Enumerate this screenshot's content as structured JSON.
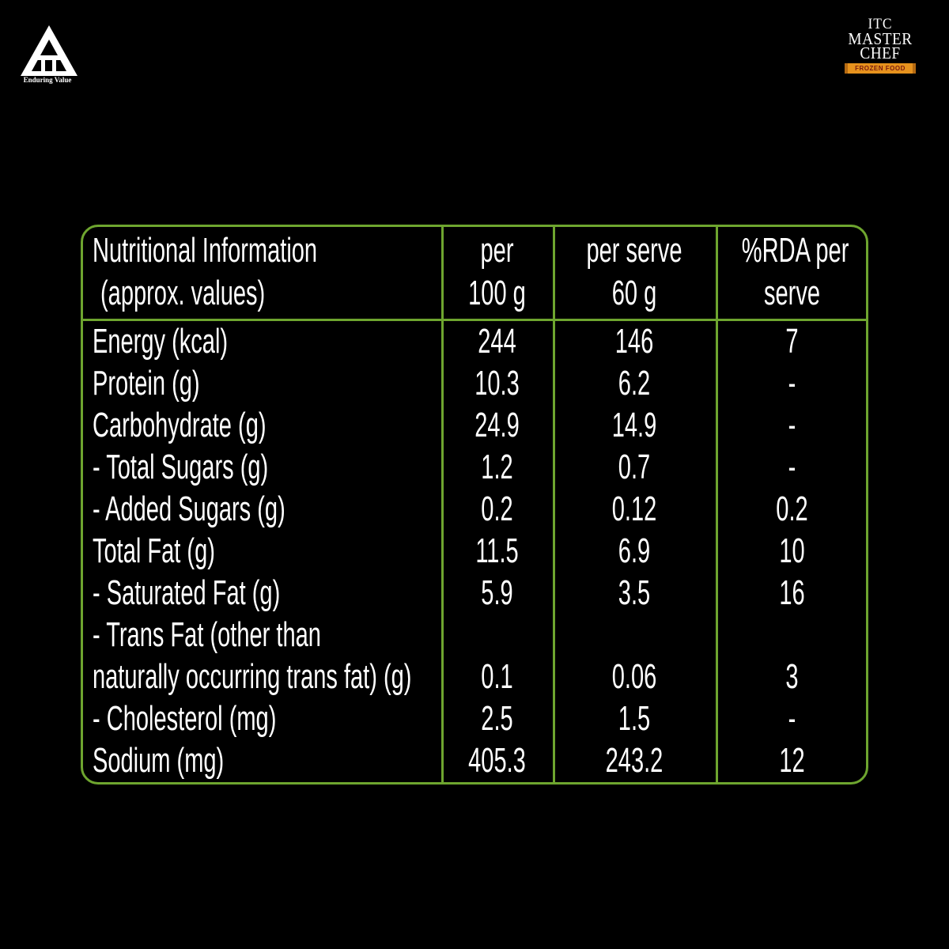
{
  "brand": {
    "itc_logo_text": "ITC",
    "itc_tagline": "Enduring Value",
    "mc_itc": "ITC",
    "mc_master": "MASTER",
    "mc_chef": "CHEF",
    "mc_ribbon": "FROZEN FOOD"
  },
  "table": {
    "headers": {
      "nutrient_line1": "Nutritional Information",
      "nutrient_line2": "(approx. values)",
      "per100_line1": "per",
      "per100_line2": "100 g",
      "perserve_line1": "per serve",
      "perserve_line2": "60 g",
      "rda_line1": "%RDA per",
      "rda_line2": "serve"
    },
    "rows": [
      {
        "label": "Energy (kcal)",
        "per100": "244",
        "serve": "146",
        "rda": "7"
      },
      {
        "label": "Protein (g)",
        "per100": "10.3",
        "serve": "6.2",
        "rda": "-"
      },
      {
        "label": "Carbohydrate (g)",
        "per100": "24.9",
        "serve": "14.9",
        "rda": "-"
      },
      {
        "label": "- Total Sugars (g)",
        "per100": "1.2",
        "serve": "0.7",
        "rda": "-"
      },
      {
        "label": "- Added Sugars (g)",
        "per100": "0.2",
        "serve": "0.12",
        "rda": "0.2"
      },
      {
        "label": "Total Fat (g)",
        "per100": "11.5",
        "serve": "6.9",
        "rda": "10"
      },
      {
        "label": "- Saturated Fat (g)",
        "per100": "5.9",
        "serve": "3.5",
        "rda": "16"
      },
      {
        "label": "- Trans Fat (other than",
        "per100": "",
        "serve": "",
        "rda": ""
      },
      {
        "label": "naturally occurring trans fat) (g)",
        "per100": "0.1",
        "serve": "0.06",
        "rda": "3"
      },
      {
        "label": "- Cholesterol (mg)",
        "per100": "2.5",
        "serve": "1.5",
        "rda": "-"
      },
      {
        "label": "Sodium (mg)",
        "per100": "405.3",
        "serve": "243.2",
        "rda": "12"
      }
    ]
  },
  "colors": {
    "background": "#000000",
    "border": "#6ea52f",
    "text": "#ffffff",
    "ribbon": "#e6921d"
  }
}
